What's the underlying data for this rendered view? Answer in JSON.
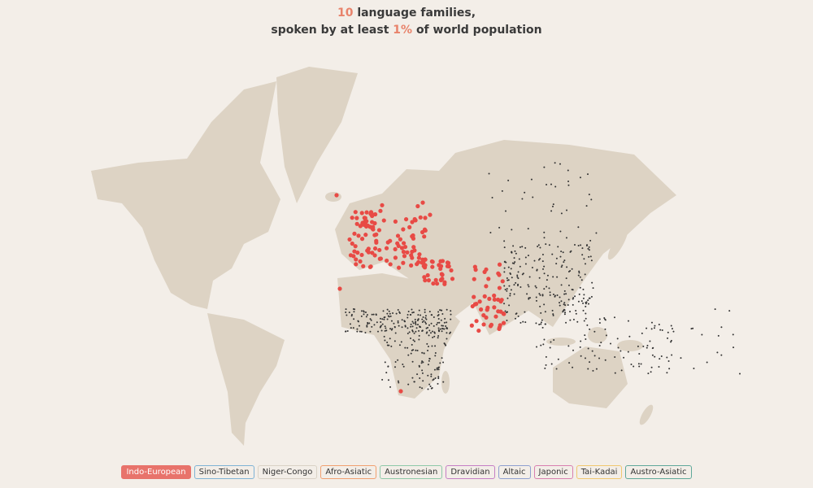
{
  "header": {
    "title_line1": {
      "number": "10",
      "text": "language families,"
    },
    "title_line2": {
      "prefix": "spoken by at least",
      "number": "1%",
      "suffix": "of world population"
    }
  },
  "legend": [
    {
      "name": "Indo-European",
      "color": "#e8736b",
      "active": true
    },
    {
      "name": "Sino-Tibetan",
      "color": "#7fb3d5"
    },
    {
      "name": "Niger-Congo",
      "color": "#d9d2c6"
    },
    {
      "name": "Afro-Asiatic",
      "color": "#f0a070"
    },
    {
      "name": "Austronesian",
      "color": "#8fc9a8"
    },
    {
      "name": "Dravidian",
      "color": "#c57fc5"
    },
    {
      "name": "Altaic",
      "color": "#8f9fd0"
    },
    {
      "name": "Japonic",
      "color": "#d87fb0"
    },
    {
      "name": "Tai-Kadai",
      "color": "#f0c870"
    },
    {
      "name": "Austro-Asiatic",
      "color": "#5fa89a"
    }
  ]
}
